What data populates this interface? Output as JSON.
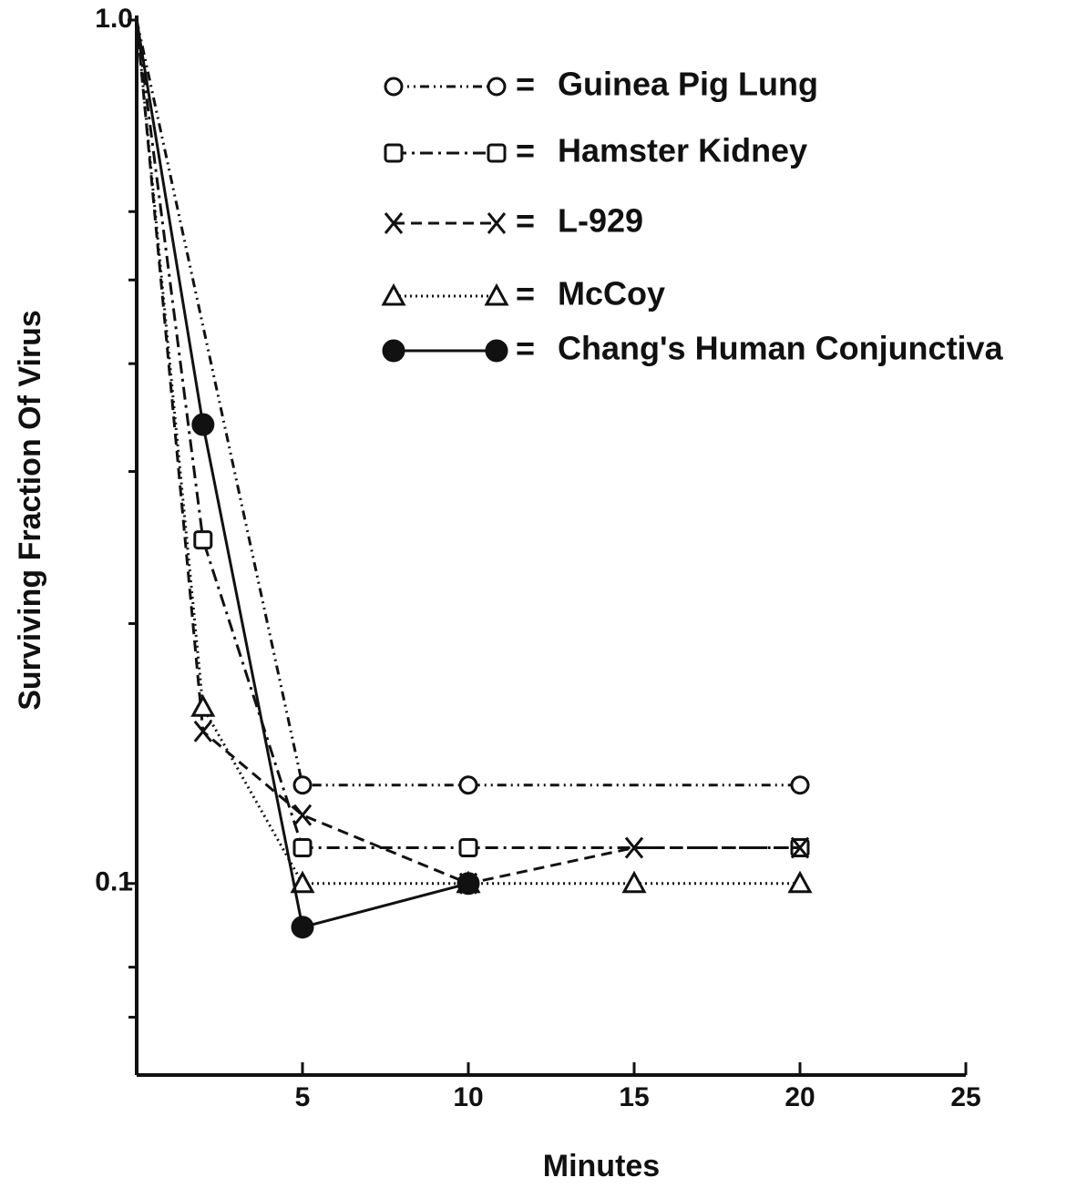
{
  "chart_data": {
    "type": "line",
    "ylabel": "Surviving Fraction Of Virus",
    "xlabel": "Minutes",
    "log_y": true,
    "xlim": [
      0,
      25
    ],
    "xticks": [
      5,
      10,
      15,
      20,
      25
    ],
    "ylim": [
      0.06,
      1.0
    ],
    "yticks": [
      {
        "value": 1,
        "label": "1.0"
      },
      0.1
    ],
    "yminorticks": [
      0.6,
      0.5,
      0.4,
      0.3,
      0.2,
      0.08,
      0.07
    ],
    "series": [
      {
        "name": "Guinea Pig Lung",
        "marker": "circle",
        "dash": "10,5,2,5,2,5",
        "color": "#111",
        "x": [
          0,
          5,
          10,
          20
        ],
        "values": [
          1.0,
          0.13,
          0.13,
          0.13
        ]
      },
      {
        "name": "Hamster Kidney",
        "marker": "square",
        "dash": "14,6,3,6",
        "color": "#111",
        "x": [
          0,
          2,
          5,
          10,
          20
        ],
        "values": [
          1.0,
          0.25,
          0.11,
          0.11,
          0.11
        ]
      },
      {
        "name": "L-929",
        "marker": "x",
        "dash": "12,7",
        "color": "#111",
        "x": [
          0,
          2,
          5,
          10,
          15,
          20
        ],
        "values": [
          1.0,
          0.15,
          0.12,
          0.1,
          0.11,
          0.11
        ]
      },
      {
        "name": "McCoy",
        "marker": "triangle",
        "dash": "2,4",
        "color": "#111",
        "x": [
          0,
          2,
          5,
          10,
          15,
          20
        ],
        "values": [
          1.0,
          0.16,
          0.1,
          0.1,
          0.1,
          0.1
        ]
      },
      {
        "name": "Chang's Human Conjunctiva",
        "marker": "dot",
        "dash": "none",
        "color": "#111",
        "x": [
          0,
          2,
          5,
          10
        ],
        "values": [
          1.0,
          0.34,
          0.089,
          0.1
        ]
      }
    ]
  }
}
